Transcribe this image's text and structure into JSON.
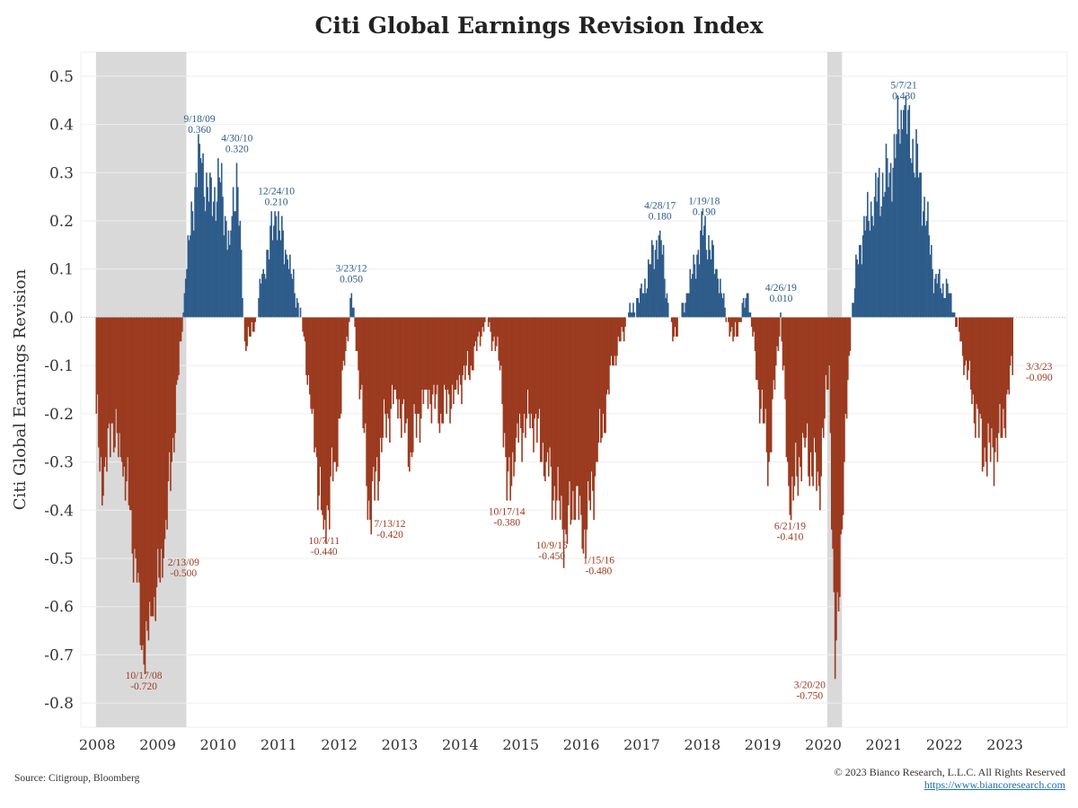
{
  "header": {
    "title": "Citi Global Earnings Revision Index"
  },
  "footer": {
    "source": "Source: Citigroup, Bloomberg",
    "copyright": "© 2023 Bianco Research, L.L.C. All Rights Reserved",
    "url": "https://www.biancoresearch.com"
  },
  "colors": {
    "positive": "#2e5c8a",
    "negative": "#9b3a1f",
    "recession": "#d9d9d9",
    "grid": "#eeeeee"
  },
  "chart_data": {
    "type": "bar",
    "title": "Citi Global Earnings Revision Index",
    "xlabel": "",
    "ylabel": "Citi Global Earnings Revision",
    "ylim": [
      -0.85,
      0.55
    ],
    "yticks": [
      0.5,
      0.4,
      0.3,
      0.2,
      0.1,
      0.0,
      -0.1,
      -0.2,
      -0.3,
      -0.4,
      -0.5,
      -0.6,
      -0.7,
      -0.8
    ],
    "ytick_labels": [
      "0.5",
      "0.4",
      "0.3",
      "0.2",
      "0.1",
      "0.0",
      "-0.1",
      "-0.2",
      "-0.3",
      "-0.4",
      "-0.5",
      "-0.6",
      "-0.7",
      "-0.8"
    ],
    "xlim": [
      2007.75,
      2024.05
    ],
    "xticks": [
      2008,
      2009,
      2010,
      2011,
      2012,
      2013,
      2014,
      2015,
      2016,
      2017,
      2018,
      2019,
      2020,
      2021,
      2022,
      2023
    ],
    "xtick_labels": [
      "2008",
      "2009",
      "2010",
      "2011",
      "2012",
      "2013",
      "2014",
      "2015",
      "2016",
      "2017",
      "2018",
      "2019",
      "2020",
      "2021",
      "2022",
      "2023"
    ],
    "grid": true,
    "recession_shading": [
      {
        "start": "2008-01-01",
        "end": "2009-06-30"
      },
      {
        "start": "2020-02-01",
        "end": "2020-04-30"
      }
    ],
    "series": [
      {
        "frequency": "weekly",
        "start": "2008-01-04",
        "end": "2023-03-03",
        "anchors": [
          [
            "2008-01-04",
            -0.2
          ],
          [
            "2008-02-15",
            -0.37
          ],
          [
            "2008-04-04",
            -0.22
          ],
          [
            "2008-06-06",
            -0.3
          ],
          [
            "2008-07-25",
            -0.4
          ],
          [
            "2008-09-05",
            -0.55
          ],
          [
            "2008-10-17",
            -0.72
          ],
          [
            "2008-12-05",
            -0.62
          ],
          [
            "2009-02-13",
            -0.5
          ],
          [
            "2009-04-03",
            -0.3
          ],
          [
            "2009-05-29",
            -0.05
          ],
          [
            "2009-06-26",
            0.08
          ],
          [
            "2009-08-07",
            0.22
          ],
          [
            "2009-09-18",
            0.36
          ],
          [
            "2009-11-13",
            0.24
          ],
          [
            "2010-01-22",
            0.28
          ],
          [
            "2010-03-19",
            0.15
          ],
          [
            "2010-04-30",
            0.32
          ],
          [
            "2010-06-18",
            -0.05
          ],
          [
            "2010-08-13",
            -0.03
          ],
          [
            "2010-10-08",
            0.1
          ],
          [
            "2010-12-24",
            0.21
          ],
          [
            "2011-03-04",
            0.12
          ],
          [
            "2011-05-27",
            0.0
          ],
          [
            "2011-07-29",
            -0.2
          ],
          [
            "2011-10-07",
            -0.44
          ],
          [
            "2011-12-16",
            -0.3
          ],
          [
            "2012-02-10",
            -0.1
          ],
          [
            "2012-03-23",
            0.05
          ],
          [
            "2012-05-18",
            -0.15
          ],
          [
            "2012-07-13",
            -0.42
          ],
          [
            "2012-09-28",
            -0.25
          ],
          [
            "2012-12-14",
            -0.15
          ],
          [
            "2013-03-15",
            -0.28
          ],
          [
            "2013-06-14",
            -0.15
          ],
          [
            "2013-09-13",
            -0.2
          ],
          [
            "2013-12-13",
            -0.15
          ],
          [
            "2014-03-14",
            -0.1
          ],
          [
            "2014-06-13",
            0.0
          ],
          [
            "2014-09-12",
            -0.1
          ],
          [
            "2014-10-17",
            -0.38
          ],
          [
            "2014-12-12",
            -0.25
          ],
          [
            "2015-03-13",
            -0.2
          ],
          [
            "2015-06-12",
            -0.3
          ],
          [
            "2015-10-09",
            -0.45
          ],
          [
            "2015-12-11",
            -0.35
          ],
          [
            "2016-01-15",
            -0.48
          ],
          [
            "2016-04-15",
            -0.3
          ],
          [
            "2016-07-15",
            -0.1
          ],
          [
            "2016-10-14",
            0.0
          ],
          [
            "2017-01-13",
            0.05
          ],
          [
            "2017-04-28",
            0.18
          ],
          [
            "2017-07-14",
            -0.05
          ],
          [
            "2017-10-13",
            0.05
          ],
          [
            "2018-01-19",
            0.19
          ],
          [
            "2018-04-13",
            0.08
          ],
          [
            "2018-07-13",
            -0.05
          ],
          [
            "2018-10-12",
            0.05
          ],
          [
            "2018-12-14",
            -0.15
          ],
          [
            "2019-02-15",
            -0.3
          ],
          [
            "2019-04-26",
            0.01
          ],
          [
            "2019-06-21",
            -0.41
          ],
          [
            "2019-09-13",
            -0.25
          ],
          [
            "2019-12-13",
            -0.35
          ],
          [
            "2020-02-14",
            -0.1
          ],
          [
            "2020-03-20",
            -0.75
          ],
          [
            "2020-05-15",
            -0.3
          ],
          [
            "2020-06-26",
            0.0
          ],
          [
            "2020-08-14",
            0.15
          ],
          [
            "2020-11-13",
            0.25
          ],
          [
            "2021-02-12",
            0.3
          ],
          [
            "2021-05-07",
            0.43
          ],
          [
            "2021-08-13",
            0.3
          ],
          [
            "2021-11-12",
            0.08
          ],
          [
            "2022-02-11",
            0.05
          ],
          [
            "2022-04-15",
            -0.05
          ],
          [
            "2022-06-17",
            -0.15
          ],
          [
            "2022-09-16",
            -0.3
          ],
          [
            "2022-12-16",
            -0.25
          ],
          [
            "2023-03-03",
            -0.09
          ]
        ]
      }
    ],
    "annotations": [
      {
        "date": "9/18/09",
        "value": "0.360",
        "x": 2009.71,
        "y": 0.36,
        "side": "above"
      },
      {
        "date": "4/30/10",
        "value": "0.320",
        "x": 2010.33,
        "y": 0.32,
        "side": "above"
      },
      {
        "date": "12/24/10",
        "value": "0.210",
        "x": 2010.98,
        "y": 0.21,
        "side": "above"
      },
      {
        "date": "3/23/12",
        "value": "0.050",
        "x": 2012.22,
        "y": 0.05,
        "side": "above"
      },
      {
        "date": "4/28/17",
        "value": "0.180",
        "x": 2017.32,
        "y": 0.18,
        "side": "above"
      },
      {
        "date": "1/19/18",
        "value": "0.190",
        "x": 2018.05,
        "y": 0.19,
        "side": "above"
      },
      {
        "date": "4/26/19",
        "value": "0.010",
        "x": 2019.32,
        "y": 0.01,
        "side": "above"
      },
      {
        "date": "5/7/21",
        "value": "0.430",
        "x": 2021.35,
        "y": 0.43,
        "side": "above"
      },
      {
        "date": "10/17/08",
        "value": "-0.720",
        "x": 2008.79,
        "y": -0.72,
        "side": "below"
      },
      {
        "date": "2/13/09",
        "value": "-0.500",
        "x": 2009.12,
        "y": -0.5,
        "side": "right"
      },
      {
        "date": "10/7/11",
        "value": "-0.440",
        "x": 2011.77,
        "y": -0.44,
        "side": "below"
      },
      {
        "date": "7/13/12",
        "value": "-0.420",
        "x": 2012.53,
        "y": -0.42,
        "side": "right"
      },
      {
        "date": "10/17/14",
        "value": "-0.380",
        "x": 2014.79,
        "y": -0.38,
        "side": "below"
      },
      {
        "date": "10/9/15",
        "value": "-0.450",
        "x": 2015.77,
        "y": -0.45,
        "side": "belowleft"
      },
      {
        "date": "1/15/16",
        "value": "-0.480",
        "x": 2016.04,
        "y": -0.48,
        "side": "belowright"
      },
      {
        "date": "6/21/19",
        "value": "-0.410",
        "x": 2019.47,
        "y": -0.41,
        "side": "below"
      },
      {
        "date": "3/20/20",
        "value": "-0.750",
        "x": 2020.21,
        "y": -0.75,
        "side": "left"
      },
      {
        "date": "3/3/23",
        "value": "-0.090",
        "x": 2023.17,
        "y": -0.09,
        "side": "right"
      }
    ]
  }
}
